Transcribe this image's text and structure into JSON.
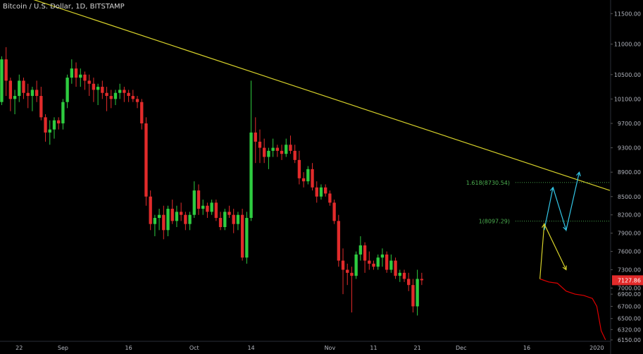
{
  "header": {
    "title": "Bitcoin / U.S. Dollar, 1D, BITSTAMP"
  },
  "colors": {
    "background": "#000000",
    "up": "#2ecc40",
    "down": "#e22b2b",
    "trendline": "#d6d12a",
    "projection_red": "#e00000",
    "arrow_yellow": "#d6d12a",
    "arrow_cyan": "#33c6e6",
    "fib_green": "#4caf50",
    "price_badge": "#e22b2b"
  },
  "chart_data": {
    "type": "candlestick",
    "title": "Bitcoin / U.S. Dollar, 1D, BITSTAMP",
    "ylim": [
      6150,
      11700
    ],
    "x_range": [
      "2019-08-16",
      "2020-01-04"
    ],
    "y_ticks": [
      "11500.00",
      "11000.00",
      "10500.00",
      "10100.00",
      "9700.00",
      "9300.00",
      "8900.00",
      "8500.00",
      "8200.00",
      "7900.00",
      "7600.00",
      "7300.00",
      "7000.00",
      "6900.00",
      "6700.00",
      "6500.00",
      "6320.00",
      "6150.00"
    ],
    "x_ticks": [
      {
        "label": "22",
        "date": "2019-08-22"
      },
      {
        "label": "Sep",
        "date": "2019-09-01"
      },
      {
        "label": "16",
        "date": "2019-09-16"
      },
      {
        "label": "Oct",
        "date": "2019-10-01"
      },
      {
        "label": "14",
        "date": "2019-10-14"
      },
      {
        "label": "Nov",
        "date": "2019-11-01"
      },
      {
        "label": "11",
        "date": "2019-11-11"
      },
      {
        "label": "21",
        "date": "2019-11-21"
      },
      {
        "label": "Dec",
        "date": "2019-12-01"
      },
      {
        "label": "16",
        "date": "2019-12-16"
      },
      {
        "label": "2020",
        "date": "2020-01-01"
      }
    ],
    "candles_start": "2019-08-16",
    "candles": [
      [
        10300,
        10450,
        10000,
        10200
      ],
      [
        10200,
        10350,
        9950,
        10050
      ],
      [
        10050,
        10800,
        10000,
        10750
      ],
      [
        10750,
        10950,
        10150,
        10400
      ],
      [
        10400,
        10450,
        9900,
        10100
      ],
      [
        10100,
        10250,
        9850,
        10150
      ],
      [
        10150,
        10500,
        10050,
        10400
      ],
      [
        10400,
        10450,
        10100,
        10200
      ],
      [
        10200,
        10350,
        9950,
        10150
      ],
      [
        10150,
        10300,
        9900,
        10250
      ],
      [
        10250,
        10400,
        10050,
        10150
      ],
      [
        10150,
        10300,
        9750,
        9800
      ],
      [
        9800,
        9850,
        9400,
        9550
      ],
      [
        9550,
        9750,
        9350,
        9600
      ],
      [
        9600,
        9800,
        9450,
        9750
      ],
      [
        9750,
        9800,
        9600,
        9700
      ],
      [
        9700,
        10100,
        9600,
        10050
      ],
      [
        10050,
        10500,
        9950,
        10450
      ],
      [
        10450,
        10750,
        10350,
        10600
      ],
      [
        10600,
        10700,
        10300,
        10450
      ],
      [
        10450,
        10600,
        10300,
        10500
      ],
      [
        10500,
        10550,
        10250,
        10400
      ],
      [
        10400,
        10500,
        10150,
        10350
      ],
      [
        10350,
        10450,
        10050,
        10250
      ],
      [
        10250,
        10350,
        10000,
        10300
      ],
      [
        10300,
        10400,
        10100,
        10200
      ],
      [
        10200,
        10300,
        9900,
        10150
      ],
      [
        10150,
        10250,
        9950,
        10100
      ],
      [
        10100,
        10250,
        10000,
        10200
      ],
      [
        10200,
        10350,
        10100,
        10250
      ],
      [
        10250,
        10300,
        10050,
        10200
      ],
      [
        10200,
        10250,
        10050,
        10150
      ],
      [
        10150,
        10250,
        10050,
        10100
      ],
      [
        10100,
        10150,
        9950,
        10050
      ],
      [
        10050,
        10100,
        9600,
        9700
      ],
      [
        9700,
        9800,
        8350,
        8500
      ],
      [
        8500,
        8600,
        7950,
        8050
      ],
      [
        8050,
        8200,
        7850,
        8150
      ],
      [
        8150,
        8300,
        7950,
        8200
      ],
      [
        8200,
        8350,
        7800,
        7950
      ],
      [
        7950,
        8350,
        7850,
        8300
      ],
      [
        8300,
        8450,
        8050,
        8100
      ],
      [
        8100,
        8350,
        8000,
        8250
      ],
      [
        8250,
        8400,
        8100,
        8200
      ],
      [
        8200,
        8250,
        7950,
        8050
      ],
      [
        8050,
        8250,
        7950,
        8200
      ],
      [
        8200,
        8750,
        8150,
        8600
      ],
      [
        8600,
        8700,
        8200,
        8300
      ],
      [
        8300,
        8450,
        8200,
        8350
      ],
      [
        8350,
        8400,
        8150,
        8250
      ],
      [
        8250,
        8450,
        8200,
        8400
      ],
      [
        8400,
        8450,
        8100,
        8150
      ],
      [
        8150,
        8250,
        7950,
        8000
      ],
      [
        8000,
        8300,
        7950,
        8250
      ],
      [
        8250,
        8350,
        8150,
        8200
      ],
      [
        8200,
        8300,
        7900,
        8050
      ],
      [
        8050,
        8250,
        7950,
        8200
      ],
      [
        8200,
        8300,
        7450,
        7500
      ],
      [
        7500,
        8250,
        7400,
        8150
      ],
      [
        8150,
        10400,
        8100,
        9550
      ],
      [
        9550,
        9800,
        9050,
        9400
      ],
      [
        9400,
        9600,
        9050,
        9300
      ],
      [
        9300,
        9450,
        9050,
        9150
      ],
      [
        9150,
        9300,
        8950,
        9250
      ],
      [
        9250,
        9450,
        9150,
        9300
      ],
      [
        9300,
        9350,
        9150,
        9250
      ],
      [
        9250,
        9350,
        9100,
        9200
      ],
      [
        9200,
        9450,
        9150,
        9350
      ],
      [
        9350,
        9500,
        9200,
        9250
      ],
      [
        9250,
        9350,
        9050,
        9100
      ],
      [
        9100,
        9250,
        8700,
        8800
      ],
      [
        8800,
        8900,
        8650,
        8750
      ],
      [
        8750,
        9000,
        8700,
        8950
      ],
      [
        8950,
        9050,
        8600,
        8650
      ],
      [
        8650,
        8750,
        8400,
        8500
      ],
      [
        8500,
        8700,
        8450,
        8650
      ],
      [
        8650,
        8700,
        8500,
        8550
      ],
      [
        8550,
        8600,
        8350,
        8400
      ],
      [
        8400,
        8450,
        8050,
        8100
      ],
      [
        8100,
        8200,
        7350,
        7450
      ],
      [
        7450,
        7650,
        6900,
        7300
      ],
      [
        7300,
        7400,
        7050,
        7250
      ],
      [
        7250,
        7350,
        6600,
        7200
      ],
      [
        7200,
        7600,
        7150,
        7550
      ],
      [
        7550,
        7850,
        7450,
        7700
      ],
      [
        7700,
        7750,
        7250,
        7450
      ],
      [
        7450,
        7600,
        7300,
        7400
      ],
      [
        7400,
        7450,
        7300,
        7350
      ],
      [
        7350,
        7550,
        7300,
        7500
      ],
      [
        7500,
        7650,
        7350,
        7550
      ],
      [
        7550,
        7600,
        7250,
        7300
      ],
      [
        7300,
        7550,
        7250,
        7450
      ],
      [
        7450,
        7500,
        7150,
        7200
      ],
      [
        7200,
        7300,
        7100,
        7250
      ],
      [
        7250,
        7300,
        7100,
        7150
      ],
      [
        7150,
        7250,
        6950,
        7050
      ],
      [
        7050,
        7150,
        6600,
        6700
      ],
      [
        6700,
        7300,
        6550,
        7150
      ],
      [
        7150,
        7250,
        7050,
        7127.86
      ]
    ],
    "last_price": "7127.86",
    "trendline": {
      "start": [
        "2019-08-16",
        11950
      ],
      "end": [
        "2020-01-04",
        8600
      ]
    },
    "fib_levels": [
      {
        "label": "1.618(8730.54)",
        "value": 8730.54
      },
      {
        "label": "1(8097.29)",
        "value": 8097.29
      }
    ],
    "yellow_arrow": [
      [
        "2019-12-19",
        7150
      ],
      [
        "2019-12-20",
        8050
      ],
      [
        "2019-12-25",
        7300
      ]
    ],
    "cyan_arrow": [
      [
        "2019-12-20",
        7950
      ],
      [
        "2019-12-22",
        8650
      ],
      [
        "2019-12-25",
        7950
      ],
      [
        "2019-12-28",
        8900
      ]
    ],
    "projection": [
      [
        "2019-12-19",
        7150
      ],
      [
        "2019-12-21",
        7100
      ],
      [
        "2019-12-23",
        7080
      ],
      [
        "2019-12-25",
        6950
      ],
      [
        "2019-12-27",
        6900
      ],
      [
        "2019-12-29",
        6880
      ],
      [
        "2019-12-31",
        6830
      ],
      [
        "2020-01-01",
        6700
      ],
      [
        "2020-01-02",
        6300
      ],
      [
        "2020-01-03",
        6150
      ]
    ]
  }
}
